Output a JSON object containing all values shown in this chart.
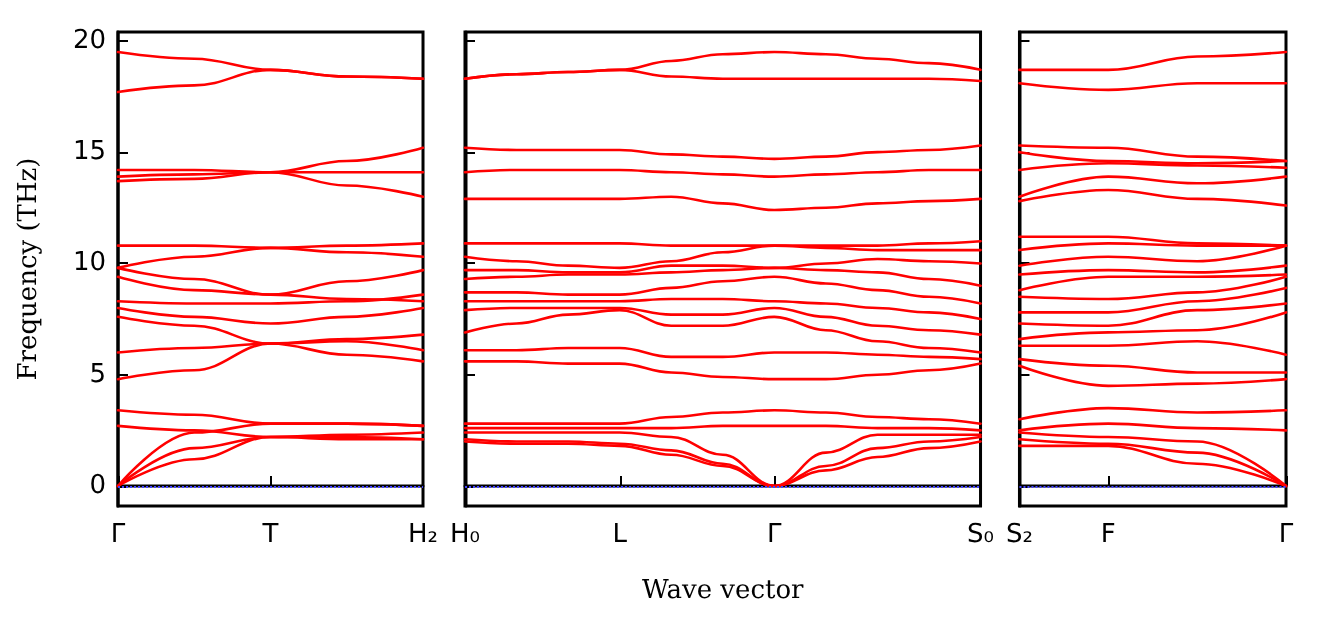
{
  "chart_data": [
    {
      "type": "line",
      "ylabel": "Frequency (THz)",
      "categories": [
        "Γ",
        null,
        "T",
        null,
        "H₂"
      ],
      "ylim": [
        -0.9,
        20.4
      ],
      "yticks": [
        0,
        5,
        10,
        15,
        20
      ],
      "grid": false,
      "marker": "none",
      "line_style": "solid",
      "ref_lines": [
        {
          "axis": "y",
          "value": 0,
          "label": null,
          "color": "#4444ff",
          "line_style": "dotted"
        }
      ],
      "series": [
        {
          "color": "#ff0000",
          "values": [
            0,
            1.2,
            2.2,
            2.1,
            2.1
          ]
        },
        {
          "color": "#ff0000",
          "values": [
            0,
            1.7,
            2.2,
            2.3,
            2.4
          ]
        },
        {
          "color": "#ff0000",
          "values": [
            0,
            2.4,
            2.8,
            2.8,
            2.7
          ]
        },
        {
          "color": "#ff0000",
          "values": [
            2.7,
            2.5,
            2.2,
            2.2,
            2.1
          ]
        },
        {
          "color": "#ff0000",
          "values": [
            3.4,
            3.2,
            2.8,
            2.8,
            2.7
          ]
        },
        {
          "color": "#ff0000",
          "values": [
            4.8,
            5.2,
            6.4,
            5.9,
            5.6
          ]
        },
        {
          "color": "#ff0000",
          "values": [
            6.0,
            6.2,
            6.4,
            6.5,
            6.1
          ]
        },
        {
          "color": "#ff0000",
          "values": [
            7.6,
            7.2,
            6.4,
            6.6,
            6.8
          ]
        },
        {
          "color": "#ff0000",
          "values": [
            8.0,
            7.6,
            7.3,
            7.6,
            8.0
          ]
        },
        {
          "color": "#ff0000",
          "values": [
            8.3,
            8.2,
            8.2,
            8.3,
            8.6
          ]
        },
        {
          "color": "#ff0000",
          "values": [
            9.4,
            8.8,
            8.6,
            9.2,
            9.7
          ]
        },
        {
          "color": "#ff0000",
          "values": [
            9.8,
            9.3,
            8.6,
            8.4,
            8.3
          ]
        },
        {
          "color": "#ff0000",
          "values": [
            9.8,
            10.3,
            10.7,
            10.5,
            10.3
          ]
        },
        {
          "color": "#ff0000",
          "values": [
            10.8,
            10.8,
            10.7,
            10.8,
            10.9
          ]
        },
        {
          "color": "#ff0000",
          "values": [
            13.7,
            13.8,
            14.1,
            14.6,
            15.2
          ]
        },
        {
          "color": "#ff0000",
          "values": [
            13.9,
            14.0,
            14.1,
            14.1,
            14.1
          ]
        },
        {
          "color": "#ff0000",
          "values": [
            14.2,
            14.2,
            14.1,
            13.5,
            13.0
          ]
        },
        {
          "color": "#ff0000",
          "values": [
            17.7,
            18.0,
            18.7,
            18.4,
            18.3
          ]
        },
        {
          "color": "#ff0000",
          "values": [
            19.5,
            19.2,
            18.7,
            18.4,
            18.3
          ]
        }
      ]
    },
    {
      "type": "line",
      "xlabel": "Wave vector",
      "categories": [
        "H₀",
        null,
        null,
        "L",
        null,
        null,
        "Γ",
        null,
        null,
        null,
        "S₀"
      ],
      "ylim": [
        -0.9,
        20.4
      ],
      "yticks": [
        0,
        5,
        10,
        15,
        20
      ],
      "tick_labels": "x",
      "grid": false,
      "marker": "none",
      "line_style": "solid",
      "ref_lines": [
        {
          "axis": "y",
          "value": 0,
          "label": null,
          "color": "#4444ff",
          "line_style": "dotted"
        }
      ],
      "series": [
        {
          "color": "#ff0000",
          "values": [
            2.0,
            1.9,
            1.9,
            1.8,
            1.4,
            0.9,
            0,
            0.7,
            1.3,
            1.7,
            2.0
          ]
        },
        {
          "color": "#ff0000",
          "values": [
            2.1,
            2.0,
            2.0,
            1.9,
            1.6,
            1.0,
            0,
            0.9,
            1.7,
            2.0,
            2.2
          ]
        },
        {
          "color": "#ff0000",
          "values": [
            2.4,
            2.4,
            2.4,
            2.4,
            2.2,
            1.4,
            0,
            1.5,
            2.3,
            2.3,
            2.3
          ]
        },
        {
          "color": "#ff0000",
          "values": [
            2.6,
            2.6,
            2.6,
            2.6,
            2.6,
            2.7,
            2.7,
            2.7,
            2.6,
            2.6,
            2.5
          ]
        },
        {
          "color": "#ff0000",
          "values": [
            2.8,
            2.8,
            2.8,
            2.8,
            3.1,
            3.3,
            3.4,
            3.3,
            3.1,
            3.0,
            2.8
          ]
        },
        {
          "color": "#ff0000",
          "values": [
            5.6,
            5.6,
            5.5,
            5.5,
            5.1,
            4.9,
            4.8,
            4.8,
            5.0,
            5.2,
            5.5
          ]
        },
        {
          "color": "#ff0000",
          "values": [
            6.1,
            6.1,
            6.2,
            6.2,
            5.8,
            5.8,
            6.0,
            6.0,
            5.9,
            5.8,
            5.7
          ]
        },
        {
          "color": "#ff0000",
          "values": [
            6.9,
            7.3,
            7.7,
            7.9,
            7.2,
            7.2,
            7.6,
            7.0,
            6.5,
            6.2,
            6.0
          ]
        },
        {
          "color": "#ff0000",
          "values": [
            7.9,
            8.0,
            8.0,
            8.0,
            7.7,
            7.7,
            8.0,
            7.6,
            7.2,
            7.0,
            6.8
          ]
        },
        {
          "color": "#ff0000",
          "values": [
            8.3,
            8.3,
            8.3,
            8.3,
            8.4,
            8.4,
            8.3,
            8.2,
            8.0,
            7.8,
            7.5
          ]
        },
        {
          "color": "#ff0000",
          "values": [
            8.7,
            8.7,
            8.6,
            8.6,
            8.9,
            9.2,
            9.4,
            9.1,
            8.8,
            8.5,
            8.2
          ]
        },
        {
          "color": "#ff0000",
          "values": [
            9.3,
            9.4,
            9.5,
            9.5,
            9.6,
            9.7,
            9.8,
            9.7,
            9.6,
            9.3,
            9.0
          ]
        },
        {
          "color": "#ff0000",
          "values": [
            9.7,
            9.7,
            9.6,
            9.6,
            9.9,
            9.9,
            9.8,
            10.0,
            10.2,
            10.1,
            10.0
          ]
        },
        {
          "color": "#ff0000",
          "values": [
            10.3,
            10.1,
            9.9,
            9.8,
            10.1,
            10.5,
            10.8,
            10.7,
            10.6,
            10.6,
            10.6
          ]
        },
        {
          "color": "#ff0000",
          "values": [
            10.9,
            10.9,
            10.9,
            10.9,
            10.8,
            10.8,
            10.8,
            10.8,
            10.8,
            10.9,
            11.0
          ]
        },
        {
          "color": "#ff0000",
          "values": [
            12.9,
            12.9,
            12.9,
            12.9,
            13.0,
            12.7,
            12.4,
            12.5,
            12.7,
            12.8,
            12.9
          ]
        },
        {
          "color": "#ff0000",
          "values": [
            14.1,
            14.2,
            14.2,
            14.2,
            14.1,
            14.0,
            13.9,
            14.0,
            14.1,
            14.2,
            14.2
          ]
        },
        {
          "color": "#ff0000",
          "values": [
            15.2,
            15.1,
            15.1,
            15.1,
            14.9,
            14.8,
            14.7,
            14.8,
            15.0,
            15.1,
            15.3
          ]
        },
        {
          "color": "#ff0000",
          "values": [
            18.3,
            18.5,
            18.6,
            18.7,
            18.4,
            18.3,
            18.3,
            18.3,
            18.3,
            18.3,
            18.2
          ]
        },
        {
          "color": "#ff0000",
          "values": [
            18.3,
            18.5,
            18.6,
            18.7,
            19.1,
            19.4,
            19.5,
            19.4,
            19.2,
            19.0,
            18.7
          ]
        }
      ]
    },
    {
      "type": "line",
      "categories": [
        "S₂",
        "F",
        null,
        "Γ"
      ],
      "ylim": [
        -0.9,
        20.4
      ],
      "yticks": [
        0,
        5,
        10,
        15,
        20
      ],
      "tick_labels": "x",
      "grid": false,
      "marker": "none",
      "line_style": "solid",
      "ref_lines": [
        {
          "axis": "y",
          "value": 0,
          "label": null,
          "color": "#4444ff",
          "line_style": "dotted"
        }
      ],
      "series": [
        {
          "color": "#ff0000",
          "values": [
            1.8,
            1.8,
            1.0,
            0
          ]
        },
        {
          "color": "#ff0000",
          "values": [
            2.1,
            1.9,
            1.5,
            0
          ]
        },
        {
          "color": "#ff0000",
          "values": [
            2.4,
            2.2,
            2.0,
            0
          ]
        },
        {
          "color": "#ff0000",
          "values": [
            2.5,
            2.8,
            2.6,
            2.5
          ]
        },
        {
          "color": "#ff0000",
          "values": [
            3.0,
            3.5,
            3.3,
            3.4
          ]
        },
        {
          "color": "#ff0000",
          "values": [
            5.4,
            4.5,
            4.6,
            4.8
          ]
        },
        {
          "color": "#ff0000",
          "values": [
            5.7,
            5.4,
            5.1,
            5.1
          ]
        },
        {
          "color": "#ff0000",
          "values": [
            6.3,
            6.3,
            6.5,
            5.9
          ]
        },
        {
          "color": "#ff0000",
          "values": [
            6.6,
            6.9,
            7.0,
            7.8
          ]
        },
        {
          "color": "#ff0000",
          "values": [
            7.3,
            7.2,
            7.9,
            8.2
          ]
        },
        {
          "color": "#ff0000",
          "values": [
            7.8,
            7.8,
            8.3,
            8.9
          ]
        },
        {
          "color": "#ff0000",
          "values": [
            8.5,
            8.4,
            8.7,
            9.4
          ]
        },
        {
          "color": "#ff0000",
          "values": [
            8.8,
            9.4,
            9.4,
            9.5
          ]
        },
        {
          "color": "#ff0000",
          "values": [
            9.5,
            9.7,
            9.6,
            9.9
          ]
        },
        {
          "color": "#ff0000",
          "values": [
            9.9,
            10.3,
            10.1,
            10.8
          ]
        },
        {
          "color": "#ff0000",
          "values": [
            10.6,
            10.9,
            10.8,
            10.8
          ]
        },
        {
          "color": "#ff0000",
          "values": [
            11.2,
            11.2,
            10.9,
            10.8
          ]
        },
        {
          "color": "#ff0000",
          "values": [
            12.8,
            13.3,
            12.9,
            12.6
          ]
        },
        {
          "color": "#ff0000",
          "values": [
            13.0,
            13.9,
            13.6,
            13.9
          ]
        },
        {
          "color": "#ff0000",
          "values": [
            14.2,
            14.5,
            14.4,
            14.3
          ]
        },
        {
          "color": "#ff0000",
          "values": [
            15.0,
            14.6,
            14.5,
            14.6
          ]
        },
        {
          "color": "#ff0000",
          "values": [
            15.3,
            15.2,
            14.8,
            14.6
          ]
        },
        {
          "color": "#ff0000",
          "values": [
            18.1,
            17.8,
            18.1,
            18.1
          ]
        },
        {
          "color": "#ff0000",
          "values": [
            18.7,
            18.7,
            19.3,
            19.5
          ]
        }
      ]
    }
  ]
}
